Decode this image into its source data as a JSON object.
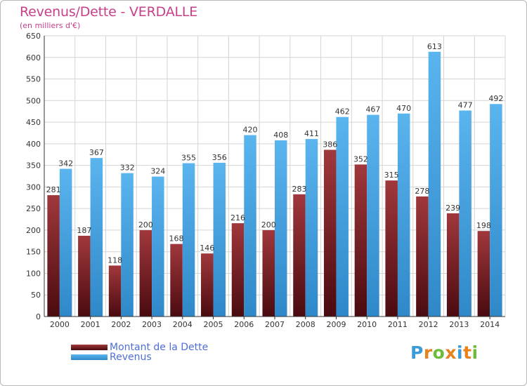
{
  "header": {
    "title": "Revenus/Dette - VERDALLE",
    "subtitle": "(en milliers d'€)"
  },
  "colors": {
    "title": "#c7408a",
    "dette": "#7d1f24",
    "revenus": "#4aa6e6",
    "legend_text": "#4e6ed8"
  },
  "legend": {
    "dette_label": "Montant de la Dette",
    "revenus_label": "Revenus"
  },
  "logo": {
    "text": "Proxiti",
    "letter_colors": [
      "#3a9bd8",
      "#e8821f",
      "#6dbb3a",
      "#e8821f",
      "#3a9bd8",
      "#e8821f",
      "#6dbb3a"
    ]
  },
  "chart_data": {
    "type": "bar",
    "title": "Revenus/Dette - VERDALLE",
    "ylabel": "",
    "xlabel": "",
    "ylim": [
      0,
      650
    ],
    "yticks": [
      0,
      50,
      100,
      150,
      200,
      250,
      300,
      350,
      400,
      450,
      500,
      550,
      600,
      650
    ],
    "grid": true,
    "categories": [
      "2000",
      "2001",
      "2002",
      "2003",
      "2004",
      "2005",
      "2006",
      "2007",
      "2008",
      "2009",
      "2010",
      "2011",
      "2012",
      "2013",
      "2014"
    ],
    "series": [
      {
        "name": "Montant de la Dette",
        "values": [
          281,
          187,
          118,
          200,
          168,
          146,
          216,
          200,
          283,
          386,
          352,
          315,
          278,
          239,
          198
        ]
      },
      {
        "name": "Revenus",
        "values": [
          342,
          367,
          332,
          324,
          355,
          356,
          420,
          408,
          411,
          462,
          467,
          470,
          613,
          477,
          492
        ]
      }
    ]
  }
}
